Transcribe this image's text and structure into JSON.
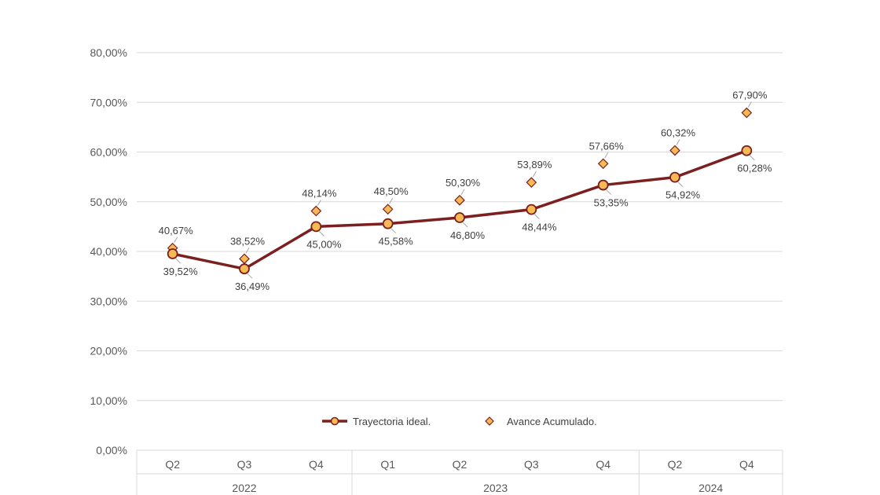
{
  "chart_data": {
    "type": "line",
    "title": "",
    "xlabel": "",
    "ylabel": "",
    "ylim": [
      0,
      80
    ],
    "y_ticks": [
      "0,00%",
      "10,00%",
      "20,00%",
      "30,00%",
      "40,00%",
      "50,00%",
      "60,00%",
      "70,00%",
      "80,00%"
    ],
    "grid": true,
    "legend_position": "bottom-inside",
    "categories": [
      "Q2",
      "Q3",
      "Q4",
      "Q1",
      "Q2",
      "Q3",
      "Q4",
      "Q2",
      "Q4"
    ],
    "year_groups": [
      {
        "label": "2022",
        "count": 3
      },
      {
        "label": "2023",
        "count": 4
      },
      {
        "label": "2024",
        "count": 2
      }
    ],
    "series": [
      {
        "name": "Trayectoria ideal.",
        "style": "line-with-circle-markers",
        "color": "#7B1F1F",
        "marker_fill": "#F7B955",
        "values": [
          39.52,
          36.49,
          45.0,
          45.58,
          46.8,
          48.44,
          53.35,
          54.92,
          60.28
        ],
        "labels": [
          "39,52%",
          "36,49%",
          "45,00%",
          "45,58%",
          "46,80%",
          "48,44%",
          "53,35%",
          "54,92%",
          "60,28%"
        ]
      },
      {
        "name": "Avance Acumulado.",
        "style": "diamond-markers",
        "color": "#7B1F1F",
        "marker_fill": "#F7B955",
        "values": [
          40.67,
          38.52,
          48.14,
          48.5,
          50.3,
          53.89,
          57.66,
          60.32,
          67.9
        ],
        "labels": [
          "40,67%",
          "38,52%",
          "48,14%",
          "48,50%",
          "50,30%",
          "53,89%",
          "57,66%",
          "60,32%",
          "67,90%"
        ]
      }
    ]
  },
  "colors": {
    "grid": "#D9D9D9",
    "axis_text": "#595959",
    "line": "#7B1F1F",
    "marker_fill": "#F7B955"
  }
}
